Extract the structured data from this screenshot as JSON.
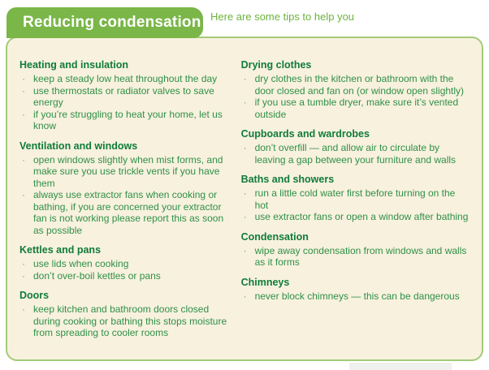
{
  "header": {
    "title": "Reducing condensation",
    "subtitle": "Here are some tips to help you"
  },
  "colors": {
    "tab_green": "#7ab648",
    "subtitle_green": "#6cb33e",
    "panel_bg": "#f8f1de",
    "panel_border": "#a3cb78",
    "heading_green": "#0f7c3a",
    "body_green": "#2f9048",
    "bullet_green": "#74a85c",
    "shadow_grey": "#eff1ef"
  },
  "bullet_glyph": "·",
  "columns": [
    {
      "sections": [
        {
          "heading": "Heating and insulation",
          "bullets": [
            "keep a steady low heat throughout the day",
            "use thermostats or radiator valves to save energy",
            "if you’re struggling to heat your home, let us know"
          ]
        },
        {
          "heading": "Ventilation and windows",
          "bullets": [
            "open windows slightly when mist forms, and make sure you use trickle vents if you have them",
            "always use extractor fans when cooking or bathing, if you are concerned your extractor fan is not working please report this as soon as possible"
          ]
        },
        {
          "heading": "Kettles and pans",
          "bullets": [
            "use lids when cooking",
            "don’t over-boil kettles or pans"
          ]
        },
        {
          "heading": "Doors",
          "bullets": [
            "keep kitchen and bathroom doors closed during cooking or bathing this stops moisture from spreading to cooler rooms"
          ]
        }
      ]
    },
    {
      "sections": [
        {
          "heading": "Drying clothes",
          "bullets": [
            "dry clothes in the kitchen or bathroom with the door closed and fan on (or window open slightly)",
            "if you use a tumble dryer, make sure it’s vented outside"
          ]
        },
        {
          "heading": "Cupboards and wardrobes",
          "bullets": [
            "don’t overfill — and allow air to circulate by leaving a gap between your furniture and walls"
          ]
        },
        {
          "heading": "Baths and showers",
          "bullets": [
            "run a little cold water first before turning on the hot",
            "use extractor fans or open a window after bathing"
          ]
        },
        {
          "heading": "Condensation",
          "bullets": [
            "wipe away condensation from windows and walls as it forms"
          ]
        },
        {
          "heading": "Chimneys",
          "bullets": [
            "never block chimneys — this can be dangerous"
          ]
        }
      ]
    }
  ]
}
